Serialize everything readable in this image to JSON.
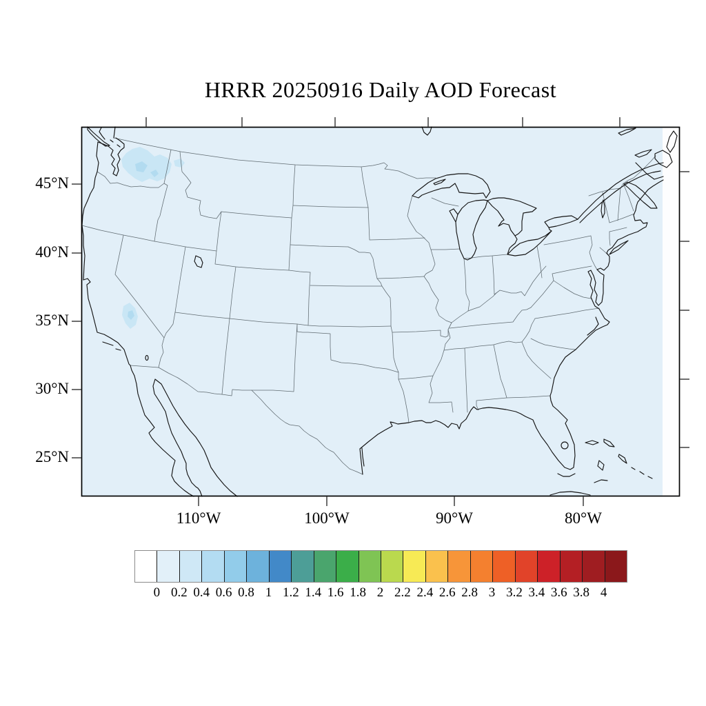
{
  "title": "HRRR 20250916 Daily AOD Forecast",
  "axes": {
    "lat_labels": [
      "45°N",
      "40°N",
      "35°N",
      "30°N",
      "25°N"
    ],
    "lon_labels": [
      "110°W",
      "100°W",
      "90°W",
      "80°W"
    ]
  },
  "colorbar": {
    "tick_labels": [
      "0",
      "0.2",
      "0.4",
      "0.6",
      "0.8",
      "1",
      "1.2",
      "1.4",
      "1.6",
      "1.8",
      "2",
      "2.2",
      "2.4",
      "2.6",
      "2.8",
      "3",
      "3.2",
      "3.4",
      "3.6",
      "3.8",
      "4"
    ],
    "colors": [
      "#ffffff",
      "#e2f0f9",
      "#cfe8f6",
      "#b3dcf2",
      "#92ccea",
      "#6db2dc",
      "#4289c8",
      "#4d9e97",
      "#4aa56d",
      "#3bae49",
      "#7fc454",
      "#bad94e",
      "#f7ea55",
      "#fac14d",
      "#f79539",
      "#f4802f",
      "#ee6026",
      "#e14329",
      "#cd2128",
      "#b41f24",
      "#9f1d21",
      "#8b181b"
    ]
  },
  "colors": {
    "map_fill": "#e2eff8",
    "domain_edge": "#fdfdfe",
    "aod_light": "#c9e6f5",
    "aod_medium": "#b2dbf0",
    "coast": "#141414",
    "border": "#5f6a70",
    "frame": "#000000",
    "tick": "#4a4a4a"
  },
  "chart_data": {
    "type": "heatmap",
    "title": "HRRR 20250916 Daily AOD Forecast",
    "projection": "Lambert conformal over contiguous United States",
    "x_axis": {
      "label": "longitude",
      "ticks": [
        "110°W",
        "100°W",
        "90°W",
        "80°W"
      ]
    },
    "y_axis": {
      "label": "latitude",
      "ticks": [
        "45°N",
        "40°N",
        "35°N",
        "30°N",
        "25°N"
      ]
    },
    "colorbar_range": [
      0,
      4
    ],
    "colorbar_step": 0.2,
    "values_note": "AOD near 0 (white/pale blue) across nearly the entire domain; small AOD ~0.2 patches over western Washington and the southern Sierra Nevada in California",
    "legend_position": "bottom",
    "grid": false
  }
}
